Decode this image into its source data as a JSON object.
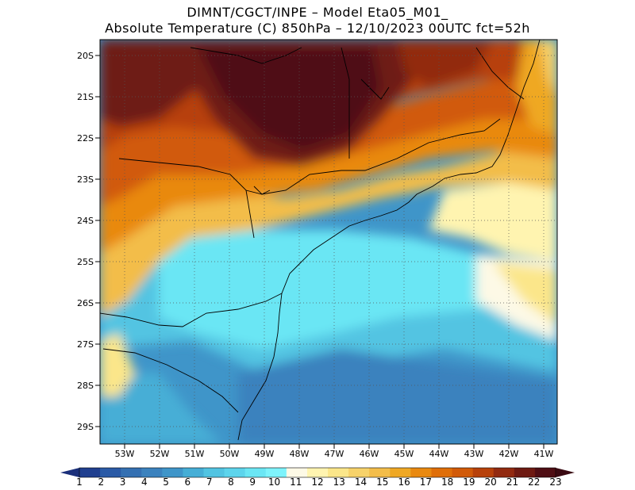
{
  "header": {
    "title_line1": "DIMNT/CGCT/INPE –  Model Eta05_M01_",
    "title_line2": "Absolute Temperature (C) 850hPa –  12/10/2023 00UTC fct=52h"
  },
  "map": {
    "lat_labels": [
      "20S",
      "21S",
      "22S",
      "23S",
      "24S",
      "25S",
      "26S",
      "27S",
      "28S",
      "29S"
    ],
    "lon_labels": [
      "53W",
      "52W",
      "51W",
      "50W",
      "49W",
      "48W",
      "47W",
      "46W",
      "45W",
      "44W",
      "43W",
      "42W",
      "41W"
    ],
    "grid": "dotted"
  },
  "colorbar": {
    "labels": [
      "1",
      "2",
      "3",
      "4",
      "5",
      "6",
      "7",
      "8",
      "9",
      "10",
      "11",
      "12",
      "13",
      "14",
      "15",
      "16",
      "17",
      "18",
      "19",
      "20",
      "21",
      "22",
      "23"
    ],
    "colors": [
      "#1f3f8f",
      "#2a5aa6",
      "#3470b2",
      "#3b82be",
      "#3f95c9",
      "#46aed6",
      "#52c4e2",
      "#5dd4ec",
      "#6be6f4",
      "#7ef3fb",
      "#fdf9e6",
      "#fff4b0",
      "#fbe68a",
      "#f7d26a",
      "#f3bd4a",
      "#efa824",
      "#e98910",
      "#df6e08",
      "#d15a08",
      "#b7410a",
      "#922a10",
      "#6e1a12",
      "#4f0e14"
    ],
    "low_arrow_color": "#1a2f7a",
    "high_arrow_color": "#3a0a12"
  }
}
